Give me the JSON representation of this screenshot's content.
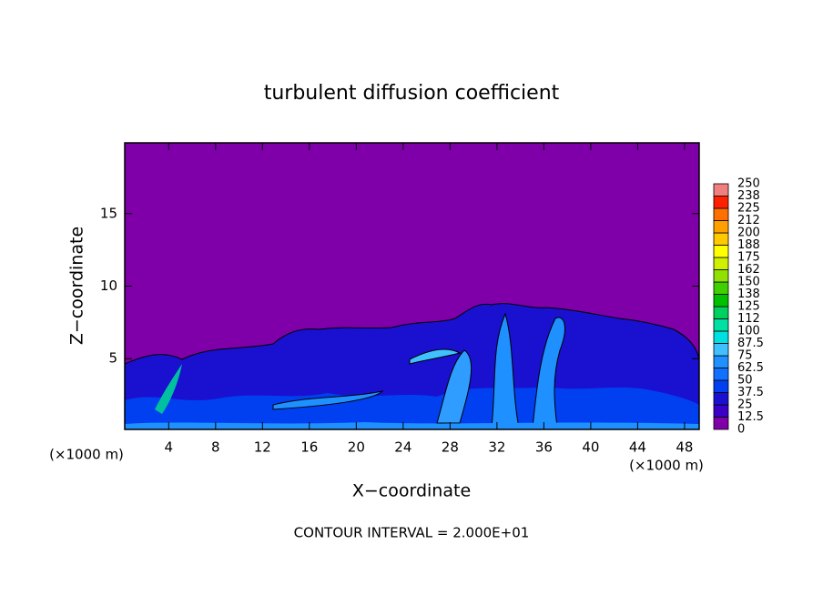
{
  "chart_data": {
    "type": "contour",
    "title": "turbulent diffusion coefficient",
    "x_label": "X−coordinate",
    "y_label": "Z−coordinate",
    "x_unit_left": "(×1000 m)",
    "x_unit_right": "(×1000 m)",
    "footnote": "CONTOUR INTERVAL = 2.000E+01",
    "xlim": [
      0.25,
      49.25
    ],
    "xticks": [
      4,
      8,
      12,
      16,
      20,
      24,
      28,
      32,
      36,
      40,
      44,
      48
    ],
    "ylim": [
      0.125,
      19.875
    ],
    "yticks": [
      5,
      10,
      15
    ],
    "colorbar": {
      "ticks": [
        0,
        12.5,
        25,
        37.5,
        50,
        62.5,
        75,
        87.5,
        100,
        112,
        125,
        138,
        150,
        162,
        175,
        188,
        200,
        212,
        225,
        238,
        250
      ],
      "colors": [
        "#7f00a8",
        "#3a00c8",
        "#1a10d0",
        "#0040f0",
        "#1070ff",
        "#1e90ff",
        "#40c0ff",
        "#00e0e0",
        "#00e0a0",
        "#00d060",
        "#00c000",
        "#40d000",
        "#90e000",
        "#d0f000",
        "#ffff00",
        "#ffc800",
        "#ffa000",
        "#ff7000",
        "#ff2000",
        "#f08080"
      ]
    }
  }
}
